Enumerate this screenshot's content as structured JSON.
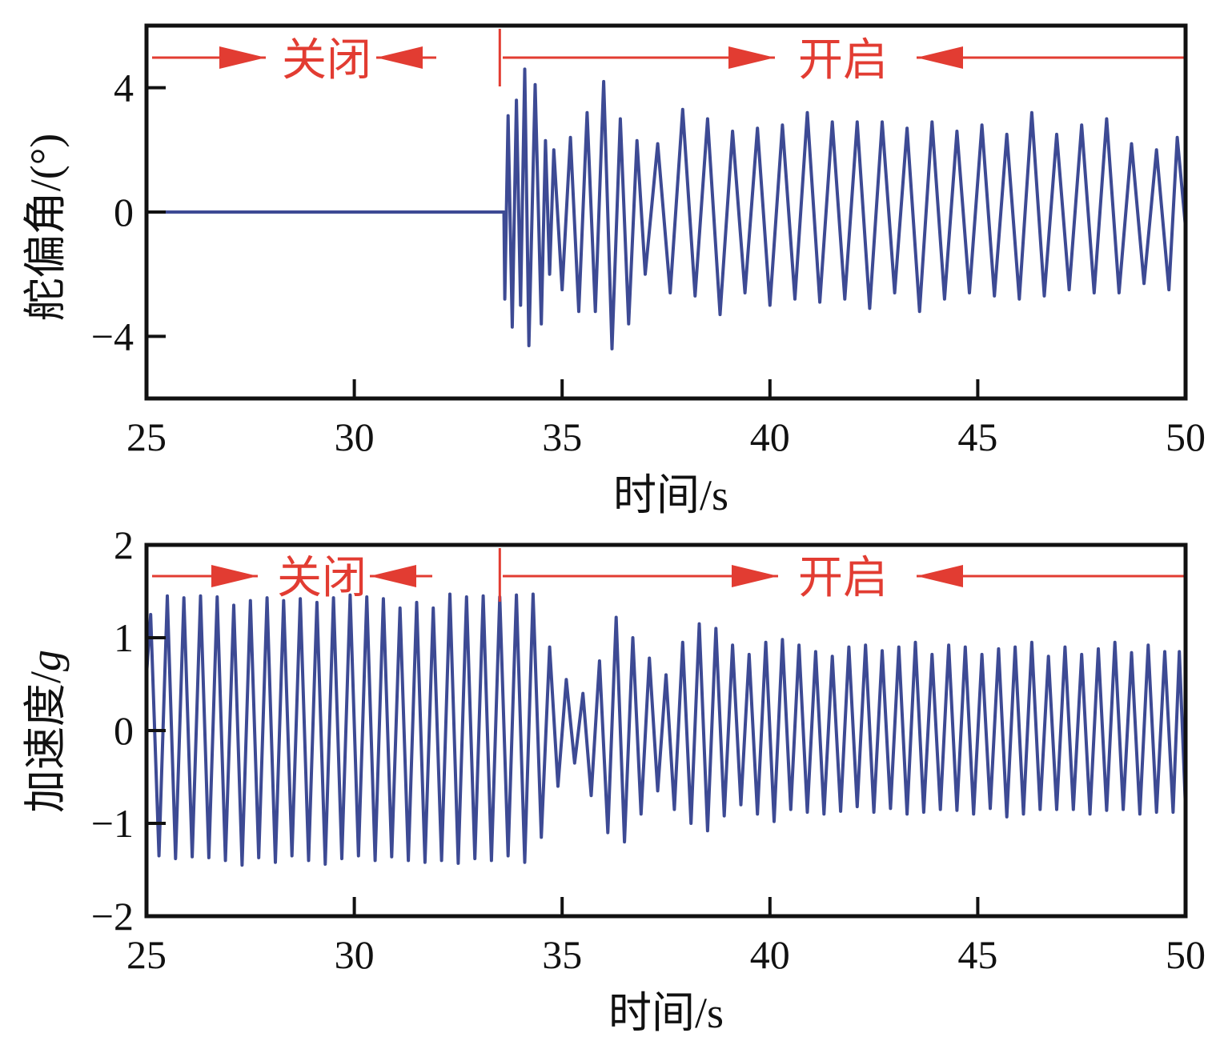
{
  "colors": {
    "series": "#3d4a94",
    "annotation": "#e23c32",
    "axes": "#111111"
  },
  "chart_data": [
    {
      "id": "rudder",
      "type": "line",
      "xlabel": "时间/s",
      "ylabel": "舵偏角/(°)",
      "xlim": [
        25,
        50
      ],
      "ylim": [
        -6,
        6
      ],
      "xticks": [
        25,
        30,
        35,
        40,
        45,
        50
      ],
      "yticks": [
        -4,
        0,
        4
      ],
      "ytick_labels": [
        "−4",
        "0",
        "4"
      ],
      "switch_time": 33.5,
      "annotations": {
        "off_label": "关闭",
        "on_label": "开启"
      },
      "series": [
        {
          "color": "#3d4a94",
          "x": [
            25.0,
            33.6,
            33.62,
            33.7,
            33.8,
            33.9,
            34.0,
            34.1,
            34.2,
            34.35,
            34.5,
            34.6,
            34.7,
            34.8,
            35.0,
            35.2,
            35.4,
            35.6,
            35.8,
            36.0,
            36.2,
            36.4,
            36.6,
            36.8,
            37.0,
            37.3,
            37.6,
            37.9,
            38.2,
            38.5,
            38.8,
            39.1,
            39.4,
            39.7,
            40.0,
            40.3,
            40.6,
            40.9,
            41.2,
            41.5,
            41.8,
            42.1,
            42.4,
            42.7,
            43.0,
            43.3,
            43.6,
            43.9,
            44.2,
            44.5,
            44.8,
            45.1,
            45.4,
            45.7,
            46.0,
            46.3,
            46.6,
            46.9,
            47.2,
            47.5,
            47.8,
            48.1,
            48.4,
            48.7,
            49.0,
            49.3,
            49.6,
            49.8,
            50.0
          ],
          "y": [
            0,
            0,
            -2.8,
            3.1,
            -3.7,
            3.6,
            -3.0,
            4.6,
            -4.3,
            4.1,
            -3.6,
            2.3,
            -2.0,
            2.0,
            -2.5,
            2.4,
            -3.2,
            3.2,
            -3.2,
            4.2,
            -4.4,
            3.0,
            -3.6,
            2.3,
            -2.0,
            2.2,
            -2.6,
            3.3,
            -2.7,
            3.0,
            -3.3,
            2.6,
            -2.6,
            2.7,
            -3.0,
            2.8,
            -2.8,
            3.2,
            -2.9,
            2.9,
            -2.8,
            2.9,
            -3.1,
            2.9,
            -2.6,
            2.7,
            -3.2,
            2.9,
            -2.8,
            2.6,
            -2.6,
            2.8,
            -2.7,
            2.5,
            -2.8,
            3.2,
            -2.7,
            2.5,
            -2.5,
            2.8,
            -2.6,
            3.0,
            -2.6,
            2.2,
            -2.3,
            2.0,
            -2.5,
            2.4,
            -0.5
          ]
        }
      ]
    },
    {
      "id": "acceleration",
      "type": "line",
      "xlabel": "时间/s",
      "ylabel": "加速度/",
      "ylabel_italic_unit": "g",
      "xlim": [
        25,
        50
      ],
      "ylim": [
        -2,
        2
      ],
      "xticks": [
        25,
        30,
        35,
        40,
        45,
        50
      ],
      "yticks": [
        -2,
        -1,
        0,
        1,
        2
      ],
      "ytick_labels": [
        "−2",
        "−1",
        "0",
        "1",
        "2"
      ],
      "switch_time": 33.5,
      "annotations": {
        "off_label": "关闭",
        "on_label": "开启"
      },
      "series": [
        {
          "color": "#3d4a94",
          "x": [
            25.0,
            25.1,
            25.3,
            25.5,
            25.7,
            25.9,
            26.1,
            26.3,
            26.5,
            26.7,
            26.9,
            27.1,
            27.3,
            27.5,
            27.7,
            27.9,
            28.1,
            28.3,
            28.5,
            28.7,
            28.9,
            29.1,
            29.3,
            29.5,
            29.7,
            29.9,
            30.1,
            30.3,
            30.5,
            30.7,
            30.9,
            31.1,
            31.3,
            31.5,
            31.7,
            31.9,
            32.1,
            32.3,
            32.5,
            32.7,
            32.9,
            33.1,
            33.3,
            33.5,
            33.7,
            33.9,
            34.1,
            34.3,
            34.5,
            34.7,
            34.9,
            35.1,
            35.3,
            35.5,
            35.7,
            35.9,
            36.1,
            36.3,
            36.5,
            36.7,
            36.9,
            37.1,
            37.3,
            37.5,
            37.7,
            37.9,
            38.1,
            38.3,
            38.5,
            38.7,
            38.9,
            39.1,
            39.3,
            39.5,
            39.7,
            39.9,
            40.1,
            40.3,
            40.5,
            40.7,
            40.9,
            41.1,
            41.3,
            41.5,
            41.7,
            41.9,
            42.1,
            42.3,
            42.5,
            42.7,
            42.9,
            43.1,
            43.3,
            43.5,
            43.7,
            43.9,
            44.1,
            44.3,
            44.5,
            44.7,
            44.9,
            45.1,
            45.3,
            45.5,
            45.7,
            45.9,
            46.1,
            46.3,
            46.5,
            46.7,
            46.9,
            47.1,
            47.3,
            47.5,
            47.7,
            47.9,
            48.1,
            48.3,
            48.5,
            48.7,
            48.9,
            49.1,
            49.3,
            49.5,
            49.7,
            49.85,
            50.0
          ],
          "y": [
            0.6,
            1.25,
            -1.35,
            1.45,
            -1.38,
            1.43,
            -1.36,
            1.45,
            -1.37,
            1.44,
            -1.4,
            1.35,
            -1.45,
            1.4,
            -1.37,
            1.43,
            -1.42,
            1.4,
            -1.35,
            1.42,
            -1.4,
            1.38,
            -1.44,
            1.43,
            -1.38,
            1.46,
            -1.35,
            1.44,
            -1.4,
            1.42,
            -1.36,
            1.32,
            -1.4,
            1.38,
            -1.42,
            1.32,
            -1.4,
            1.47,
            -1.43,
            1.44,
            -1.38,
            1.45,
            -1.4,
            1.44,
            -1.35,
            1.46,
            -1.42,
            1.47,
            -1.15,
            0.9,
            -0.6,
            0.55,
            -0.35,
            0.4,
            -0.7,
            0.75,
            -1.1,
            1.22,
            -1.2,
            1.0,
            -0.9,
            0.78,
            -0.65,
            0.6,
            -0.85,
            0.95,
            -1.0,
            1.15,
            -1.08,
            1.1,
            -0.92,
            0.92,
            -0.8,
            0.82,
            -0.9,
            0.95,
            -0.98,
            0.98,
            -0.85,
            0.92,
            -0.88,
            0.85,
            -0.9,
            0.8,
            -0.87,
            0.9,
            -0.82,
            0.92,
            -0.88,
            0.86,
            -0.84,
            0.9,
            -0.9,
            0.95,
            -0.88,
            0.82,
            -0.85,
            0.92,
            -0.86,
            0.9,
            -0.9,
            0.82,
            -0.84,
            0.88,
            -0.93,
            0.9,
            -0.9,
            0.95,
            -0.85,
            0.8,
            -0.85,
            0.9,
            -0.85,
            0.82,
            -0.9,
            0.88,
            -0.86,
            0.95,
            -0.85,
            0.84,
            -0.9,
            0.92,
            -0.88,
            0.85,
            -0.88,
            0.85,
            -0.85
          ]
        }
      ]
    }
  ]
}
